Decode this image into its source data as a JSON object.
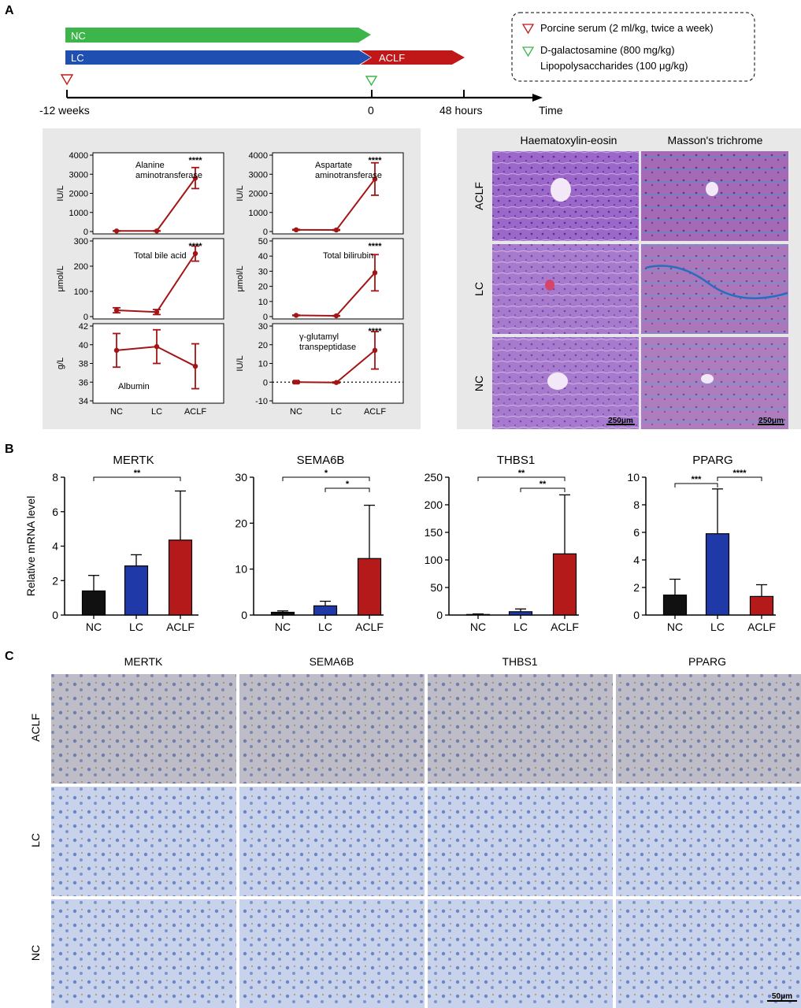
{
  "panels": {
    "a": "A",
    "b": "B",
    "c": "C"
  },
  "timeline": {
    "nc_bar": "NC",
    "lc_bar": "LC",
    "aclf_bar": "ACLF",
    "ticks": [
      "-12 weeks",
      "0",
      "48 hours"
    ],
    "axis_label": "Time",
    "legend": [
      "Porcine serum (2 ml/kg, twice a week)",
      "D-galactosamine (800 mg/kg)",
      "Lipopolysaccharides (100 μg/kg)"
    ]
  },
  "histology": {
    "col_titles": [
      "Haematoxylin-eosin",
      "Masson's trichrome"
    ],
    "row_labels": [
      "ACLF",
      "LC",
      "NC"
    ],
    "scale_bar": "250μm"
  },
  "ihc": {
    "col_titles": [
      "MERTK",
      "SEMA6B",
      "THBS1",
      "PPARG"
    ],
    "row_labels": [
      "ACLF",
      "LC",
      "NC"
    ],
    "scale_bar": "50μm"
  },
  "colors": {
    "nc": "#111111",
    "lc": "#1f3aa8",
    "aclf": "#b51a1a",
    "line": "#a31515",
    "nc_bar": "#3cb54a",
    "lc_bar": "#1f4fb0",
    "aclf_bar": "#c01818"
  },
  "chart_data": [
    {
      "type": "line",
      "title": "Alanine aminotransferase",
      "ylabel": "IU/L",
      "categories": [
        "NC",
        "LC",
        "ACLF"
      ],
      "values": [
        30,
        30,
        2800
      ],
      "errors": [
        10,
        10,
        550
      ],
      "ylim": [
        0,
        4000
      ],
      "yticks": [
        "4000",
        "3000",
        "2000",
        "1000",
        "0"
      ],
      "annotations": [
        "****"
      ]
    },
    {
      "type": "line",
      "title": "Aspartate aminotransferase",
      "ylabel": "IU/L",
      "categories": [
        "NC",
        "LC",
        "ACLF"
      ],
      "values": [
        90,
        80,
        2750
      ],
      "errors": [
        20,
        20,
        850
      ],
      "ylim": [
        0,
        4000
      ],
      "yticks": [
        "4000",
        "3000",
        "2000",
        "1000",
        "0"
      ],
      "annotations": [
        "****"
      ]
    },
    {
      "type": "line",
      "title": "Total bile acid",
      "ylabel": "μmol/L",
      "categories": [
        "NC",
        "LC",
        "ACLF"
      ],
      "values": [
        25,
        18,
        250
      ],
      "errors": [
        10,
        10,
        30
      ],
      "ylim": [
        0,
        300
      ],
      "yticks": [
        "300",
        "200",
        "100",
        "0"
      ],
      "annotations": [
        "****"
      ]
    },
    {
      "type": "line",
      "title": "Total bilirubin",
      "ylabel": "μmol/L",
      "categories": [
        "NC",
        "LC",
        "ACLF"
      ],
      "values": [
        0.8,
        0.5,
        29
      ],
      "errors": [
        0.2,
        0.2,
        12
      ],
      "ylim": [
        0,
        50
      ],
      "yticks": [
        "50",
        "40",
        "30",
        "20",
        "10",
        "0"
      ],
      "annotations": [
        "****"
      ]
    },
    {
      "type": "line",
      "title": "Albumin",
      "ylabel": "g/L",
      "categories": [
        "NC",
        "LC",
        "ACLF"
      ],
      "values": [
        39.4,
        39.8,
        37.7
      ],
      "errors": [
        1.8,
        1.8,
        2.4
      ],
      "ylim": [
        34,
        42
      ],
      "yticks": [
        "42",
        "40",
        "38",
        "36",
        "34"
      ],
      "annotations": []
    },
    {
      "type": "line",
      "title": "γ-glutamyl transpeptidase",
      "ylabel": "IU/L",
      "categories": [
        "NC",
        "LC",
        "ACLF"
      ],
      "values": [
        0,
        -0.2,
        17
      ],
      "errors": [
        0.5,
        0.3,
        10
      ],
      "ylim": [
        -10,
        30
      ],
      "yticks": [
        "30",
        "20",
        "10",
        "0",
        "-10"
      ],
      "annotations": [
        "****"
      ]
    },
    {
      "type": "bar",
      "title": "MERTK",
      "ylabel": "Relative mRNA level",
      "categories": [
        "NC",
        "LC",
        "ACLF"
      ],
      "values": [
        1.4,
        2.85,
        4.35
      ],
      "errors": [
        0.9,
        0.65,
        2.85
      ],
      "ylim": [
        0,
        8
      ],
      "yticks": [
        "8",
        "6",
        "4",
        "2",
        "0"
      ],
      "annotations": [
        "**"
      ]
    },
    {
      "type": "bar",
      "title": "SEMA6B",
      "ylabel": "",
      "categories": [
        "NC",
        "LC",
        "ACLF"
      ],
      "values": [
        0.6,
        2.0,
        12.3
      ],
      "errors": [
        0.3,
        1.0,
        11.6
      ],
      "ylim": [
        0,
        30
      ],
      "yticks": [
        "30",
        "20",
        "10",
        "0"
      ],
      "annotations": [
        "*",
        "*"
      ]
    },
    {
      "type": "bar",
      "title": "THBS1",
      "ylabel": "",
      "categories": [
        "NC",
        "LC",
        "ACLF"
      ],
      "values": [
        1.0,
        6.0,
        111
      ],
      "errors": [
        1.0,
        5.0,
        107
      ],
      "ylim": [
        0,
        250
      ],
      "yticks": [
        "250",
        "200",
        "150",
        "100",
        "50",
        "0"
      ],
      "annotations": [
        "**",
        "**"
      ]
    },
    {
      "type": "bar",
      "title": "PPARG",
      "ylabel": "",
      "categories": [
        "NC",
        "LC",
        "ACLF"
      ],
      "values": [
        1.45,
        5.9,
        1.35
      ],
      "errors": [
        1.15,
        3.25,
        0.85
      ],
      "ylim": [
        0,
        10
      ],
      "yticks": [
        "10",
        "8",
        "6",
        "4",
        "2",
        "0"
      ],
      "annotations": [
        "***",
        "****"
      ]
    }
  ]
}
